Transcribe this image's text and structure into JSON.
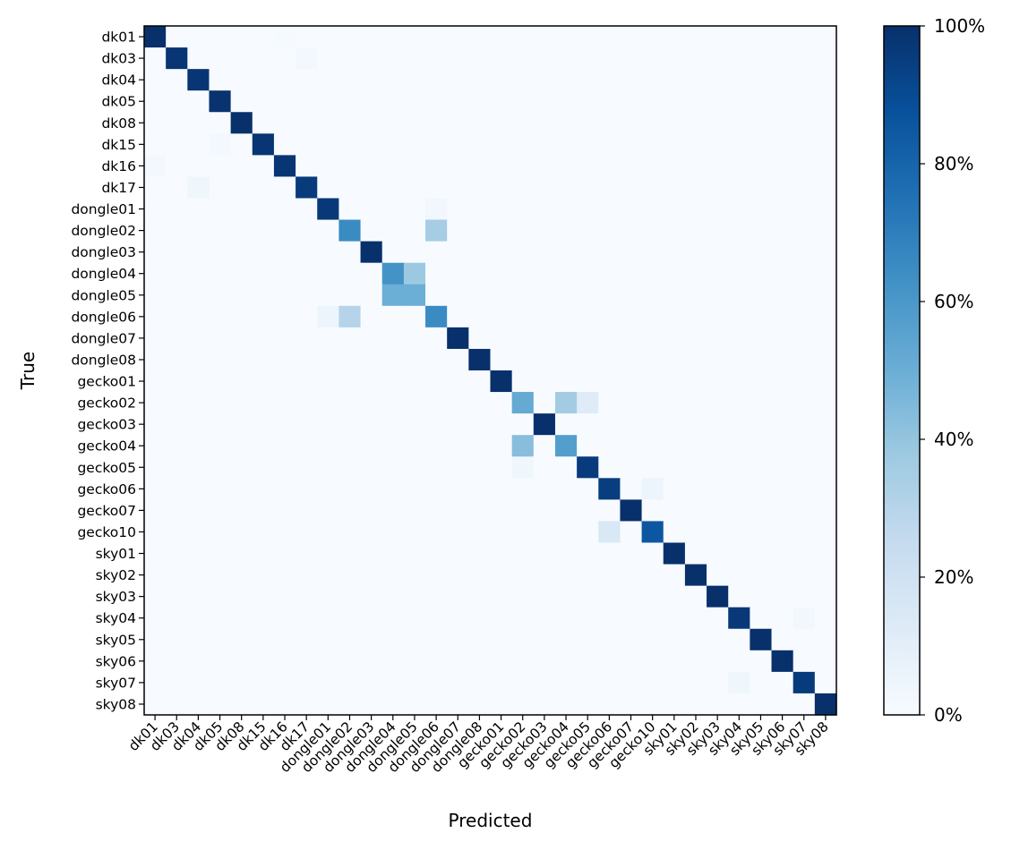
{
  "chart_data": {
    "type": "heatmap",
    "xlabel": "Predicted",
    "ylabel": "True",
    "labels": [
      "dk01",
      "dk03",
      "dk04",
      "dk05",
      "dk08",
      "dk15",
      "dk16",
      "dk17",
      "dongle01",
      "dongle02",
      "dongle03",
      "dongle04",
      "dongle05",
      "dongle06",
      "dongle07",
      "dongle08",
      "gecko01",
      "gecko02",
      "gecko03",
      "gecko04",
      "gecko05",
      "gecko06",
      "gecko07",
      "gecko10",
      "sky01",
      "sky02",
      "sky03",
      "sky04",
      "sky05",
      "sky06",
      "sky07",
      "sky08"
    ],
    "diagonal": [
      100,
      98,
      98,
      99,
      100,
      98,
      98,
      96,
      97,
      65,
      100,
      62,
      50,
      65,
      100,
      100,
      100,
      52,
      100,
      57,
      96,
      95,
      100,
      85,
      100,
      100,
      100,
      97,
      100,
      100,
      96,
      100
    ],
    "off_diagonal": [
      {
        "row": 0,
        "col": 6,
        "value": 1
      },
      {
        "row": 1,
        "col": 7,
        "value": 2
      },
      {
        "row": 5,
        "col": 3,
        "value": 2
      },
      {
        "row": 6,
        "col": 0,
        "value": 2
      },
      {
        "row": 7,
        "col": 2,
        "value": 4
      },
      {
        "row": 8,
        "col": 13,
        "value": 3
      },
      {
        "row": 9,
        "col": 13,
        "value": 35
      },
      {
        "row": 11,
        "col": 12,
        "value": 38
      },
      {
        "row": 12,
        "col": 11,
        "value": 50
      },
      {
        "row": 13,
        "col": 8,
        "value": 5
      },
      {
        "row": 13,
        "col": 9,
        "value": 30
      },
      {
        "row": 17,
        "col": 19,
        "value": 36
      },
      {
        "row": 17,
        "col": 20,
        "value": 12
      },
      {
        "row": 19,
        "col": 17,
        "value": 43
      },
      {
        "row": 20,
        "col": 17,
        "value": 4
      },
      {
        "row": 21,
        "col": 23,
        "value": 5
      },
      {
        "row": 23,
        "col": 21,
        "value": 15
      },
      {
        "row": 27,
        "col": 30,
        "value": 3
      },
      {
        "row": 30,
        "col": 27,
        "value": 4
      }
    ],
    "colorbar": {
      "colormap": "Blues",
      "min": 0,
      "max": 100,
      "ticks": [
        "0%",
        "20%",
        "40%",
        "60%",
        "80%",
        "100%"
      ]
    },
    "colors": {
      "low": "#f7fbff",
      "high": "#08306b"
    }
  }
}
